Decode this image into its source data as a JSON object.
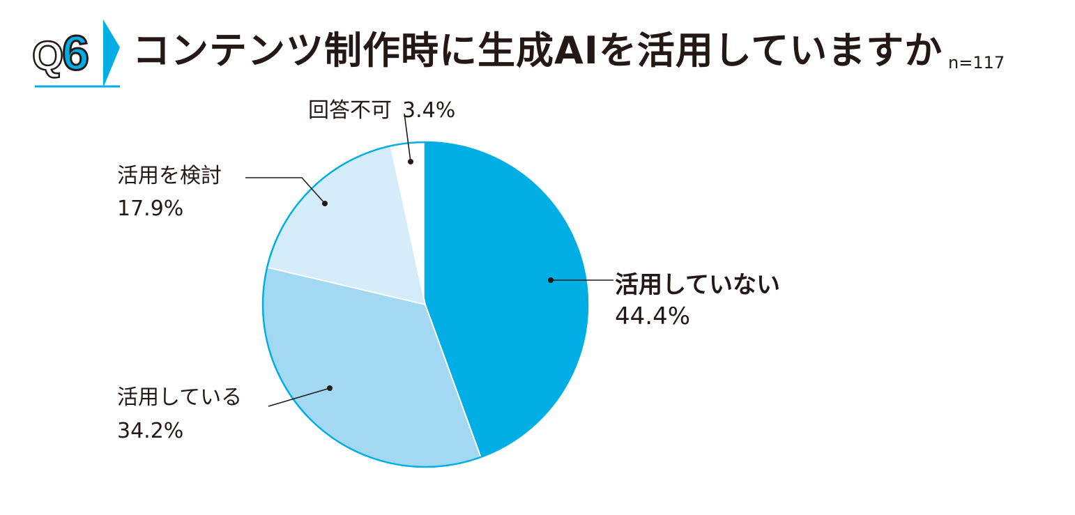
{
  "header": {
    "question_number": "Q6",
    "question_prefix": "Q",
    "question_digit": "6",
    "title": "コンテンツ制作時に生成AIを活用していますか",
    "sample_size": "n=117"
  },
  "colors": {
    "accent": "#00AEE6",
    "text": "#231815"
  },
  "chart_data": {
    "type": "pie",
    "title": "コンテンツ制作時に生成AIを活用していますか",
    "note": "n=117",
    "unit": "%",
    "start": "12 o'clock",
    "direction": "clockwise",
    "slices": [
      {
        "label": "活用していない",
        "value": 44.4,
        "value_label": "44.4%",
        "color": "#00AEE6",
        "bold": true
      },
      {
        "label": "活用している",
        "value": 34.2,
        "value_label": "34.2%",
        "color": "#A3D8F3",
        "bold": false
      },
      {
        "label": "活用を検討",
        "value": 17.9,
        "value_label": "17.9%",
        "color": "#D5EDFA",
        "bold": false
      },
      {
        "label": "回答不可",
        "value": 3.4,
        "value_label": "3.4%",
        "color": "#FFFFFF",
        "bold": false
      }
    ]
  }
}
